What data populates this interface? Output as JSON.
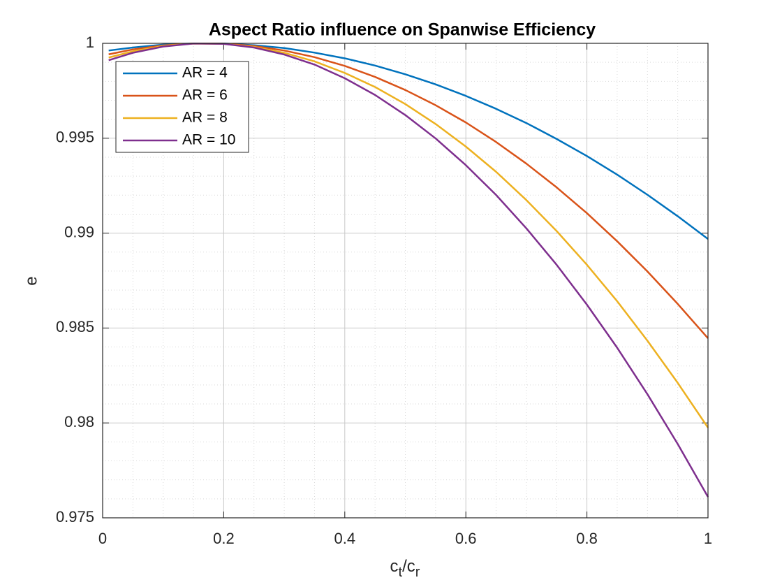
{
  "chart_data": {
    "type": "line",
    "title": "Aspect Ratio influence on Spanwise Efficiency",
    "xlabel": "c_t/c_r",
    "ylabel": "e",
    "x": [
      0.01,
      0.05,
      0.1,
      0.15,
      0.2,
      0.25,
      0.3,
      0.35,
      0.4,
      0.45,
      0.5,
      0.55,
      0.6,
      0.65,
      0.7,
      0.75,
      0.8,
      0.85,
      0.9,
      0.95,
      1.0
    ],
    "series": [
      {
        "name": "AR = 4",
        "color": "#0072bd",
        "values": [
          0.99962,
          0.99978,
          0.99993,
          0.99999,
          0.99999,
          0.9999,
          0.99975,
          0.99951,
          0.99921,
          0.99883,
          0.99837,
          0.99784,
          0.99723,
          0.99655,
          0.9958,
          0.99496,
          0.99406,
          0.99308,
          0.99202,
          0.99089,
          0.98969
        ]
      },
      {
        "name": "AR = 6",
        "color": "#d95319",
        "values": [
          0.99942,
          0.99968,
          0.99989,
          0.99999,
          0.99998,
          0.99986,
          0.99962,
          0.99927,
          0.99881,
          0.99823,
          0.99754,
          0.99674,
          0.99583,
          0.9948,
          0.99366,
          0.99241,
          0.99105,
          0.98957,
          0.98798,
          0.98627,
          0.98446
        ]
      },
      {
        "name": "AR = 8",
        "color": "#edb120",
        "values": [
          0.99925,
          0.99958,
          0.99986,
          0.99999,
          0.99997,
          0.99981,
          0.9995,
          0.99905,
          0.99844,
          0.9977,
          0.9968,
          0.99575,
          0.99456,
          0.99323,
          0.99174,
          0.99011,
          0.98833,
          0.98641,
          0.98433,
          0.98211,
          0.97975
        ]
      },
      {
        "name": "AR = 10",
        "color": "#7e2f8e",
        "values": [
          0.99911,
          0.9995,
          0.99983,
          0.99999,
          0.99997,
          0.99978,
          0.99941,
          0.99888,
          0.99816,
          0.99728,
          0.99622,
          0.99499,
          0.99358,
          0.99201,
          0.99025,
          0.98833,
          0.98623,
          0.98396,
          0.98151,
          0.97889,
          0.9761
        ]
      }
    ],
    "xlim": [
      0,
      1
    ],
    "xticks": [
      0,
      0.2,
      0.4,
      0.6,
      0.8,
      1
    ],
    "ylim": [
      0.975,
      1
    ],
    "yticks": [
      0.975,
      0.98,
      0.985,
      0.99,
      0.995,
      1
    ],
    "grid": true,
    "minor_grid": true,
    "legend": "northwest"
  }
}
